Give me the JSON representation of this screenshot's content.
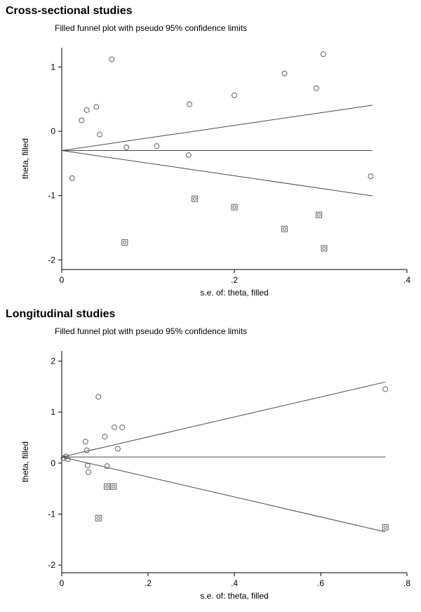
{
  "sections": [
    {
      "heading": "Cross-sectional studies"
    },
    {
      "heading": "Longitudinal studies"
    }
  ],
  "colors": {
    "axis": "#000000",
    "marker": "#606060",
    "ci_line": "#4a4a4a"
  },
  "chart_data": [
    {
      "type": "scatter",
      "title": "Filled funnel plot with pseudo 95% confidence limits",
      "xlabel": "s.e. of: theta, filled",
      "ylabel": "theta, filled",
      "xlim": [
        0,
        0.4
      ],
      "ylim": [
        -2.15,
        1.3
      ],
      "xticks": [
        0,
        0.2,
        0.4
      ],
      "xtick_labels": [
        "0",
        ".2",
        ".4"
      ],
      "yticks": [
        -2,
        -1,
        0,
        1
      ],
      "ytick_labels": [
        "-2",
        "-1",
        "0",
        "1"
      ],
      "pooled_estimate": -0.3,
      "funnel_max_se": 0.36,
      "z": 1.96,
      "legend": [
        "observed studies (circles)",
        "imputed studies (boxed)"
      ],
      "observed_points": [
        [
          0.012,
          -0.73
        ],
        [
          0.023,
          0.17
        ],
        [
          0.029,
          0.33
        ],
        [
          0.04,
          0.38
        ],
        [
          0.044,
          -0.05
        ],
        [
          0.058,
          1.12
        ],
        [
          0.075,
          -0.25
        ],
        [
          0.11,
          -0.23
        ],
        [
          0.148,
          0.42
        ],
        [
          0.147,
          -0.37
        ],
        [
          0.2,
          0.56
        ],
        [
          0.258,
          0.9
        ],
        [
          0.295,
          0.67
        ],
        [
          0.303,
          1.2
        ],
        [
          0.358,
          -0.7
        ]
      ],
      "imputed_points": [
        [
          0.073,
          -1.73
        ],
        [
          0.154,
          -1.05
        ],
        [
          0.2,
          -1.18
        ],
        [
          0.258,
          -1.52
        ],
        [
          0.298,
          -1.3
        ],
        [
          0.304,
          -1.82
        ]
      ]
    },
    {
      "type": "scatter",
      "title": "Filled funnel plot with pseudo 95% confidence limits",
      "xlabel": "s.e. of: theta, filled",
      "ylabel": "theta, filled",
      "xlim": [
        0,
        0.8
      ],
      "ylim": [
        -2.15,
        2.2
      ],
      "xticks": [
        0,
        0.2,
        0.4,
        0.6,
        0.8
      ],
      "xtick_labels": [
        "0",
        ".2",
        ".4",
        ".6",
        ".8"
      ],
      "yticks": [
        -2,
        -1,
        0,
        1,
        2
      ],
      "ytick_labels": [
        "-2",
        "-1",
        "0",
        "1",
        "2"
      ],
      "pooled_estimate": 0.12,
      "funnel_max_se": 0.75,
      "z": 1.96,
      "legend": [
        "observed studies (circles)",
        "imputed studies (boxed)"
      ],
      "observed_points": [
        [
          0.004,
          0.1
        ],
        [
          0.01,
          0.13
        ],
        [
          0.014,
          0.08
        ],
        [
          0.055,
          0.42
        ],
        [
          0.058,
          0.25
        ],
        [
          0.06,
          -0.05
        ],
        [
          0.062,
          -0.18
        ],
        [
          0.085,
          1.3
        ],
        [
          0.1,
          0.52
        ],
        [
          0.105,
          -0.06
        ],
        [
          0.122,
          0.7
        ],
        [
          0.14,
          0.7
        ],
        [
          0.13,
          0.28
        ],
        [
          0.75,
          1.45
        ]
      ],
      "imputed_points": [
        [
          0.105,
          -0.46
        ],
        [
          0.12,
          -0.46
        ],
        [
          0.085,
          -1.08
        ],
        [
          0.75,
          -1.26
        ]
      ]
    }
  ]
}
